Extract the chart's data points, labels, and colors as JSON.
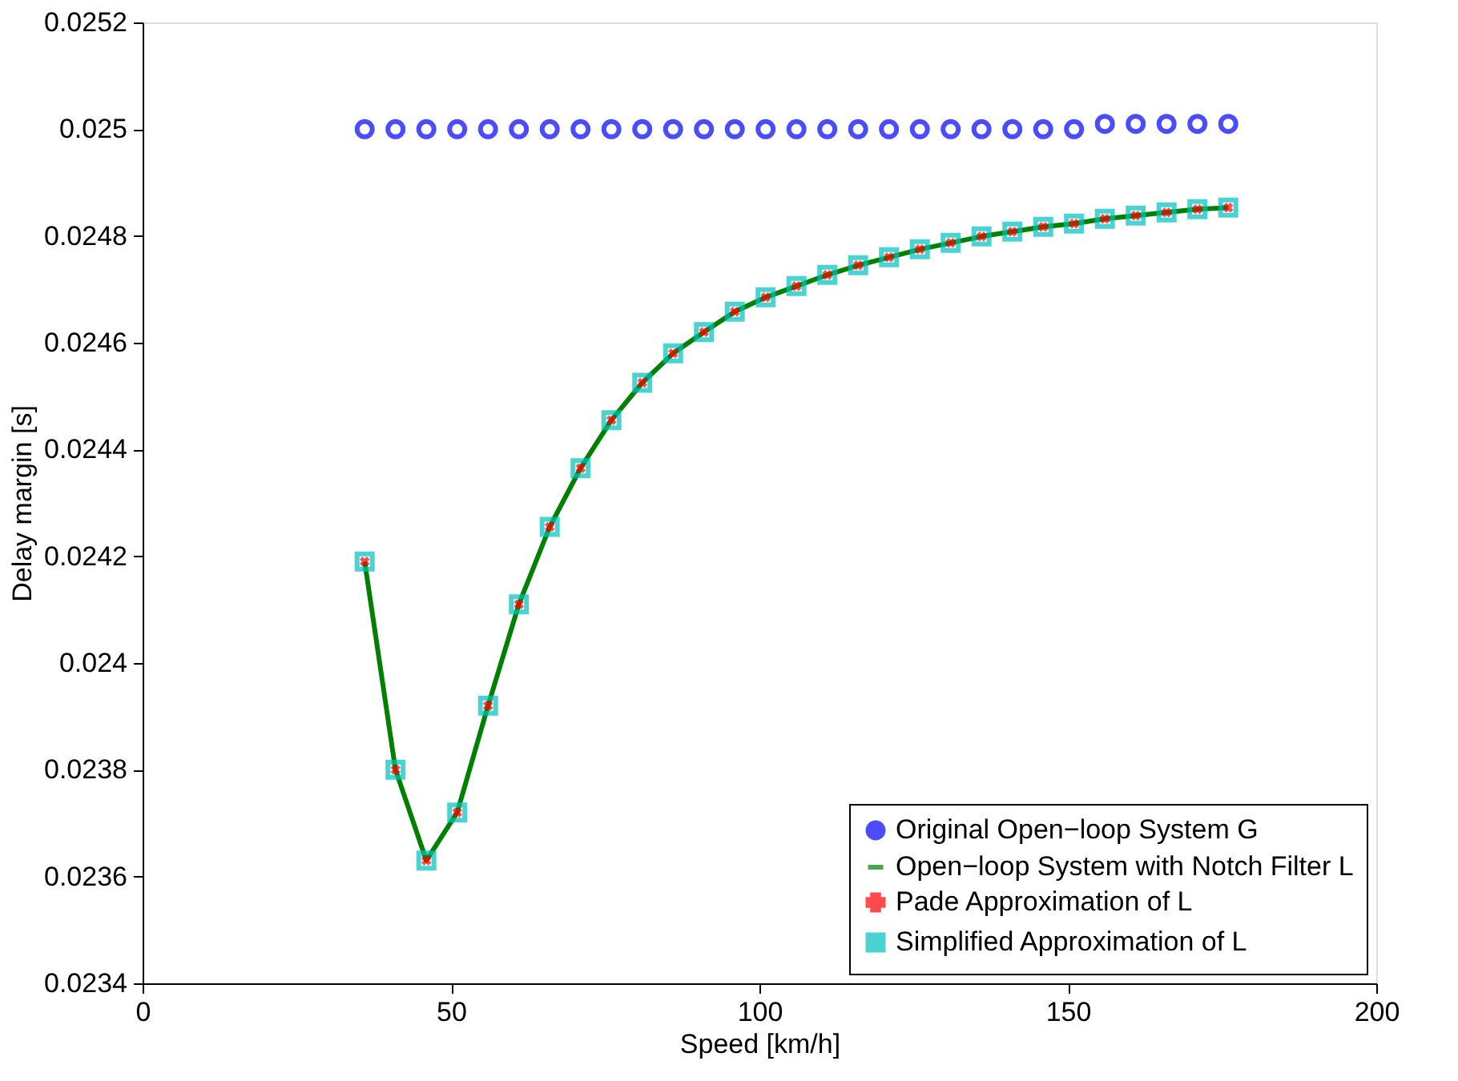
{
  "chart_data": {
    "type": "line",
    "xlabel": "Speed [km/h]",
    "ylabel": "Delay margin [s]",
    "xlim": [
      0,
      200
    ],
    "xticks": [
      0,
      50,
      100,
      150,
      200
    ],
    "ylim": [
      0.0234,
      0.0252
    ],
    "yticks": [
      0.0234,
      0.0236,
      0.0238,
      0.024,
      0.0242,
      0.0244,
      0.0246,
      0.0248,
      0.025,
      0.0252
    ],
    "x": [
      36,
      41,
      46,
      51,
      56,
      61,
      66,
      71,
      76,
      81,
      86,
      91,
      96,
      101,
      106,
      111,
      116,
      121,
      126,
      131,
      136,
      141,
      146,
      151,
      156,
      161,
      166,
      171,
      176
    ],
    "grid": false,
    "legend": "bottom right",
    "series": [
      {
        "name": "Original Open−loop System G",
        "type": "scatter",
        "marker": "circle",
        "color": "#0000ff",
        "values": [
          0.025,
          0.025,
          0.025,
          0.025,
          0.025,
          0.025,
          0.025,
          0.025,
          0.025,
          0.025,
          0.025,
          0.025,
          0.025,
          0.025,
          0.025,
          0.025,
          0.025,
          0.025,
          0.025,
          0.025,
          0.025,
          0.025,
          0.025,
          0.025,
          0.02501,
          0.02501,
          0.02501,
          0.02501,
          0.02501
        ]
      },
      {
        "name": "Open−loop System with Notch Filter L",
        "type": "line",
        "marker": "none",
        "line_style": "solid",
        "color": "#008000",
        "values": [
          0.02419,
          0.0238,
          0.02363,
          0.02372,
          0.02392,
          0.02411,
          0.024255,
          0.024365,
          0.024455,
          0.024525,
          0.02458,
          0.02462,
          0.024658,
          0.024685,
          0.024706,
          0.024727,
          0.024745,
          0.02476,
          0.024775,
          0.024787,
          0.024799,
          0.024808,
          0.024817,
          0.024823,
          0.024832,
          0.024838,
          0.024844,
          0.02485,
          0.024853
        ]
      },
      {
        "name": "Pade Approximation of L",
        "type": "scatter",
        "marker": "cross",
        "color": "#ff0000",
        "values": [
          0.02419,
          0.0238,
          0.02363,
          0.02372,
          0.02392,
          0.02411,
          0.024255,
          0.024365,
          0.024455,
          0.024525,
          0.02458,
          0.02462,
          0.024658,
          0.024685,
          0.024706,
          0.024727,
          0.024745,
          0.02476,
          0.024775,
          0.024787,
          0.024799,
          0.024808,
          0.024817,
          0.024823,
          0.024832,
          0.024838,
          0.024844,
          0.02485,
          0.024853
        ]
      },
      {
        "name": "Simplified Approximation of L",
        "type": "scatter",
        "marker": "square",
        "color": "#00bfbf",
        "values": [
          0.02419,
          0.0238,
          0.02363,
          0.02372,
          0.02392,
          0.02411,
          0.024255,
          0.024365,
          0.024455,
          0.024525,
          0.02458,
          0.02462,
          0.024658,
          0.024685,
          0.024706,
          0.024727,
          0.024745,
          0.02476,
          0.024775,
          0.024787,
          0.024799,
          0.024808,
          0.024817,
          0.024823,
          0.024832,
          0.024838,
          0.024844,
          0.02485,
          0.024853
        ]
      }
    ]
  }
}
